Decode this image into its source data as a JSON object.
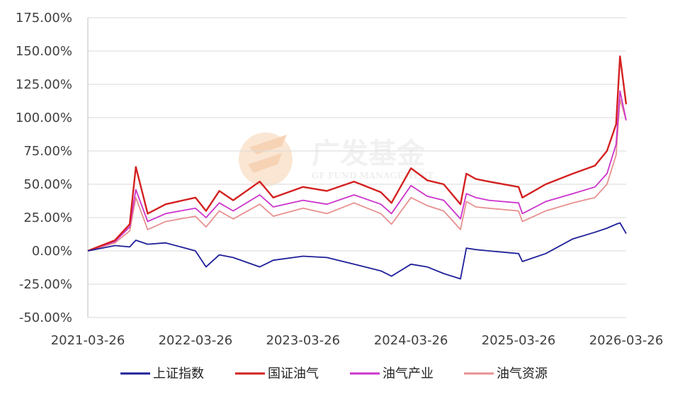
{
  "chart_data": {
    "type": "line",
    "title": "",
    "xlabel": "",
    "ylabel": "",
    "ylim": [
      -0.5,
      1.75
    ],
    "y_tick_labels": [
      "175.00%",
      "150.00%",
      "125.00%",
      "100.00%",
      "75.00%",
      "50.00%",
      "25.00%",
      "0.00%",
      "-25.00%",
      "-50.00%"
    ],
    "y_ticks": [
      1.75,
      1.5,
      1.25,
      1.0,
      0.75,
      0.5,
      0.25,
      0.0,
      -0.25,
      -0.5
    ],
    "x_tick_labels": [
      "2021-03-26",
      "2022-03-26",
      "2023-03-26",
      "2024-03-26",
      "2025-03-26",
      "2026-03-26"
    ],
    "x": [
      "2021-03-26",
      "2021-06-26",
      "2021-08-15",
      "2021-09-05",
      "2021-10-15",
      "2021-12-15",
      "2022-03-26",
      "2022-05-01",
      "2022-06-15",
      "2022-08-01",
      "2022-10-30",
      "2022-12-15",
      "2023-03-26",
      "2023-06-15",
      "2023-09-15",
      "2023-12-15",
      "2024-01-20",
      "2024-03-26",
      "2024-05-20",
      "2024-07-15",
      "2024-09-10",
      "2024-09-30",
      "2024-11-01",
      "2024-12-15",
      "2025-03-26",
      "2025-04-08",
      "2025-06-26",
      "2025-09-26",
      "2025-12-10",
      "2026-01-20",
      "2026-02-20",
      "2026-03-05",
      "2026-03-26"
    ],
    "series": [
      {
        "name": "上证指数",
        "color": "#1f1f99",
        "values": [
          0.0,
          0.04,
          0.03,
          0.08,
          0.05,
          0.06,
          0.0,
          -0.12,
          -0.03,
          -0.05,
          -0.12,
          -0.07,
          -0.04,
          -0.05,
          -0.1,
          -0.15,
          -0.19,
          -0.1,
          -0.12,
          -0.17,
          -0.21,
          0.02,
          0.01,
          0.0,
          -0.02,
          -0.08,
          -0.02,
          0.09,
          0.14,
          0.17,
          0.2,
          0.21,
          0.13
        ]
      },
      {
        "name": "国证油气",
        "color": "#d42020",
        "values": [
          0.0,
          0.08,
          0.2,
          0.63,
          0.28,
          0.35,
          0.4,
          0.3,
          0.45,
          0.38,
          0.52,
          0.4,
          0.48,
          0.45,
          0.52,
          0.44,
          0.36,
          0.62,
          0.53,
          0.5,
          0.35,
          0.58,
          0.54,
          0.52,
          0.48,
          0.4,
          0.5,
          0.58,
          0.64,
          0.75,
          0.95,
          1.46,
          1.1
        ]
      },
      {
        "name": "油气产业",
        "color": "#cc33cc",
        "values": [
          0.0,
          0.07,
          0.18,
          0.46,
          0.22,
          0.28,
          0.32,
          0.25,
          0.36,
          0.3,
          0.42,
          0.33,
          0.38,
          0.35,
          0.42,
          0.35,
          0.28,
          0.49,
          0.41,
          0.38,
          0.24,
          0.43,
          0.4,
          0.38,
          0.36,
          0.28,
          0.37,
          0.43,
          0.48,
          0.58,
          0.8,
          1.2,
          0.98
        ]
      },
      {
        "name": "油气资源",
        "color": "#e89090",
        "values": [
          0.0,
          0.06,
          0.15,
          0.4,
          0.16,
          0.22,
          0.26,
          0.18,
          0.3,
          0.24,
          0.35,
          0.26,
          0.32,
          0.28,
          0.36,
          0.28,
          0.2,
          0.4,
          0.34,
          0.3,
          0.16,
          0.37,
          0.33,
          0.32,
          0.3,
          0.22,
          0.3,
          0.36,
          0.4,
          0.5,
          0.72,
          1.14,
          0.98
        ]
      }
    ],
    "legend_position": "bottom",
    "grid": "horizontal"
  },
  "watermark": {
    "brand_cn": "广发基金",
    "brand_en": "GF FUND MANAGEMENT"
  }
}
